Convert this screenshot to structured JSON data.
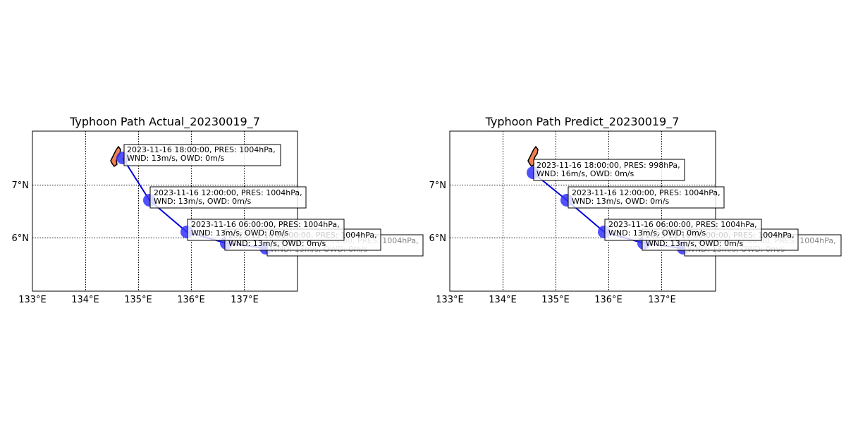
{
  "charts": [
    {
      "title": "Typhoon Path Actual_20230019_7",
      "x_ticks": [
        "133°E",
        "134°E",
        "135°E",
        "136°E",
        "137°E"
      ],
      "y_ticks": [
        "7°N",
        "6°N"
      ],
      "track": [
        {
          "lon": 137.4,
          "lat": 5.78,
          "label1": "2023-11-16 00:00:00, PRES: 1004hPa,",
          "label2": "WND: 13m/s, OWD: 0m/s"
        },
        {
          "lon": 136.65,
          "lat": 5.88,
          "label1": "2023-11-16 00:00:00, PRES: 1004hPa,",
          "label2": "WND: 13m/s, OWD: 0m/s"
        },
        {
          "lon": 135.9,
          "lat": 6.1,
          "label1": "2023-11-16 06:00:00, PRES: 1004hPa,",
          "label2": "WND: 13m/s, OWD: 0m/s"
        },
        {
          "lon": 135.2,
          "lat": 6.7,
          "label1": "2023-11-16 12:00:00, PRES: 1004hPa,",
          "label2": "WND: 13m/s, OWD: 0m/s"
        },
        {
          "lon": 134.7,
          "lat": 7.5,
          "label1": "2023-11-16 18:00:00, PRES: 1004hPa,",
          "label2": "WND: 13m/s, OWD: 0m/s"
        }
      ]
    },
    {
      "title": "Typhoon Path Predict_20230019_7",
      "x_ticks": [
        "133°E",
        "134°E",
        "135°E",
        "136°E",
        "137°E"
      ],
      "y_ticks": [
        "7°N",
        "6°N"
      ],
      "track": [
        {
          "lon": 137.4,
          "lat": 5.78,
          "label1": "2023-11-16 00:00:00, PRES: 1004hPa,",
          "label2": "WND: 13m/s, OWD: 0m/s"
        },
        {
          "lon": 136.65,
          "lat": 5.88,
          "label1": "2023-11-16 00:00:00, PRES: 1004hPa,",
          "label2": "WND: 13m/s, OWD: 0m/s"
        },
        {
          "lon": 135.9,
          "lat": 6.1,
          "label1": "2023-11-16 06:00:00, PRES: 1004hPa,",
          "label2": "WND: 13m/s, OWD: 0m/s"
        },
        {
          "lon": 135.2,
          "lat": 6.7,
          "label1": "2023-11-16 12:00:00, PRES: 1004hPa,",
          "label2": "WND: 13m/s, OWD: 0m/s"
        },
        {
          "lon": 134.5,
          "lat": 7.2,
          "label1": "2023-11-16 18:00:00, PRES: 998hPa,",
          "label2": "WND: 16m/s, OWD: 0m/s"
        }
      ]
    }
  ],
  "colors": {
    "track": "#0000dd",
    "marker": "#3333ff",
    "land": "#f08050"
  }
}
